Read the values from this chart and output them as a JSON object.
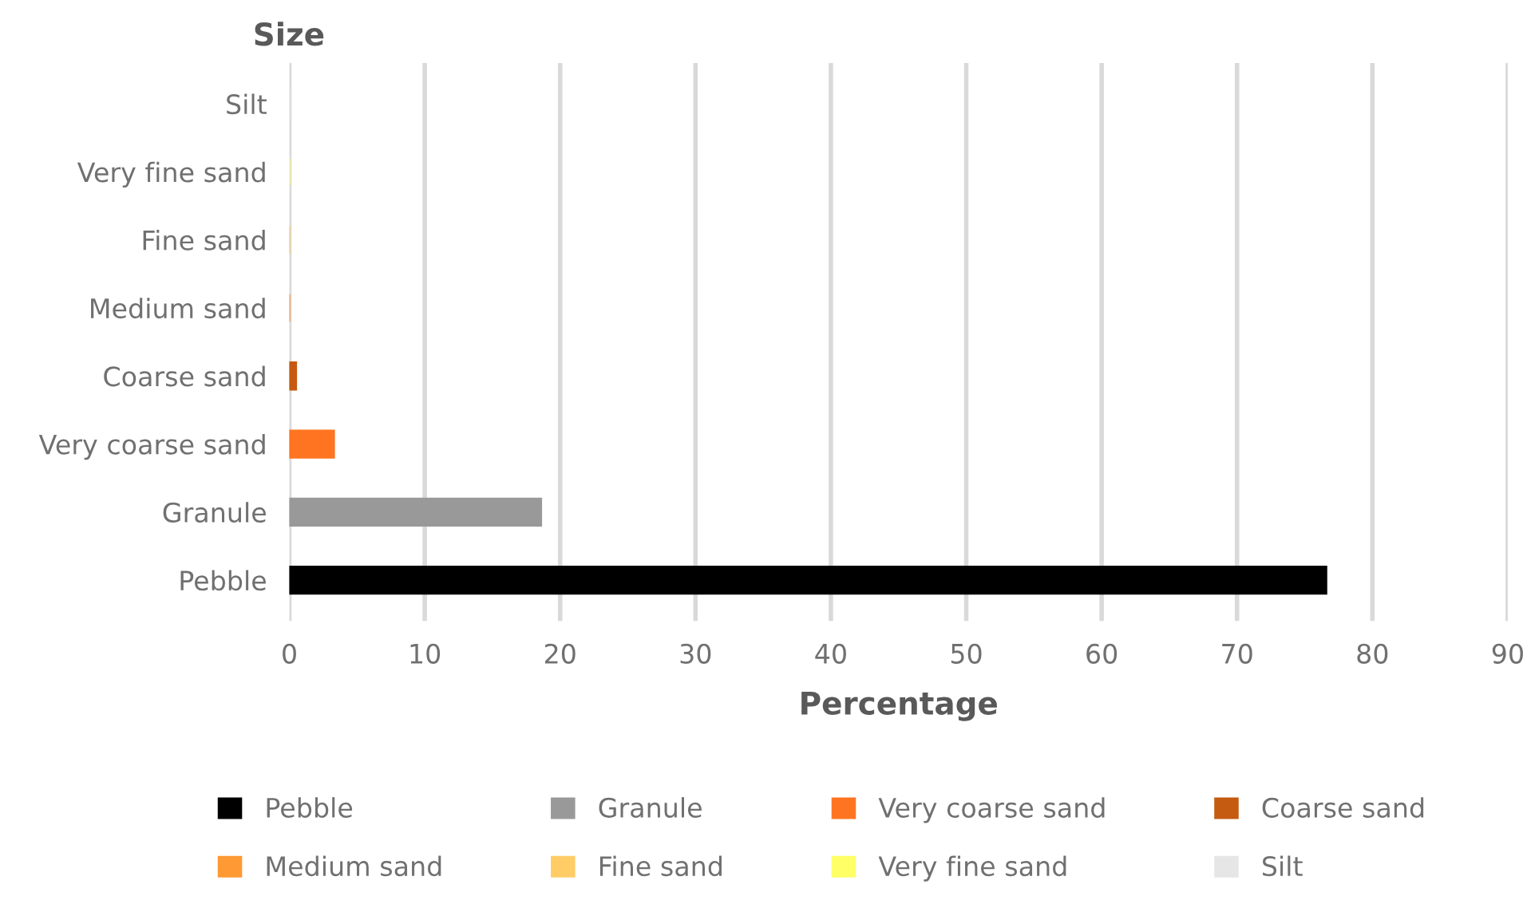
{
  "chart_data": {
    "type": "bar",
    "orientation": "horizontal",
    "xlabel": "Percentage",
    "ylabel": "Size",
    "categories": [
      "Silt",
      "Very fine sand",
      "Fine sand",
      "Medium sand",
      "Coarse sand",
      "Very coarse sand",
      "Granule",
      "Pebble"
    ],
    "series": [
      {
        "name": "Pebble",
        "color": "#000000",
        "values": [
          null,
          null,
          null,
          null,
          null,
          null,
          null,
          76.6
        ]
      },
      {
        "name": "Granule",
        "color": "#999999",
        "values": [
          null,
          null,
          null,
          null,
          null,
          null,
          18.6,
          null
        ]
      },
      {
        "name": "Very coarse sand",
        "color": "#ff7420",
        "values": [
          null,
          null,
          null,
          null,
          null,
          3.3,
          null,
          null
        ]
      },
      {
        "name": "Coarse sand",
        "color": "#c55a11",
        "values": [
          null,
          null,
          null,
          null,
          0.5,
          null,
          null,
          null
        ]
      },
      {
        "name": "Medium sand",
        "color": "#ff9933",
        "values": [
          null,
          null,
          null,
          0,
          null,
          null,
          null,
          null
        ]
      },
      {
        "name": "Fine sand",
        "color": "#ffcc66",
        "values": [
          null,
          null,
          0,
          null,
          null,
          null,
          null,
          null
        ]
      },
      {
        "name": "Very fine sand",
        "color": "#ffff66",
        "values": [
          null,
          0,
          null,
          null,
          null,
          null,
          null,
          null
        ]
      },
      {
        "name": "Silt",
        "color": "#e7e6e6",
        "values": [
          0,
          null,
          null,
          null,
          null,
          null,
          null,
          null
        ]
      }
    ],
    "xlim": [
      0,
      90
    ],
    "xticks": [
      0,
      10,
      20,
      30,
      40,
      50,
      60,
      70,
      80,
      90
    ],
    "grid": "x",
    "legend": "bottom"
  }
}
